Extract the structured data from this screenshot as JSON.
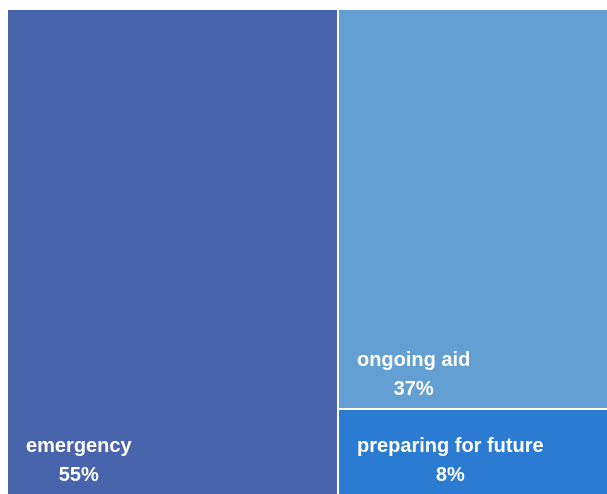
{
  "chart_data": {
    "type": "treemap",
    "title": "",
    "series": [
      {
        "name": "emergency",
        "value": 55,
        "label": "55%",
        "color": "#4864ac"
      },
      {
        "name": "ongoing aid",
        "value": 37,
        "label": "37%",
        "color": "#639fd3"
      },
      {
        "name": "preparing for future",
        "value": 8,
        "label": "8%",
        "color": "#2b7bd3"
      }
    ]
  }
}
